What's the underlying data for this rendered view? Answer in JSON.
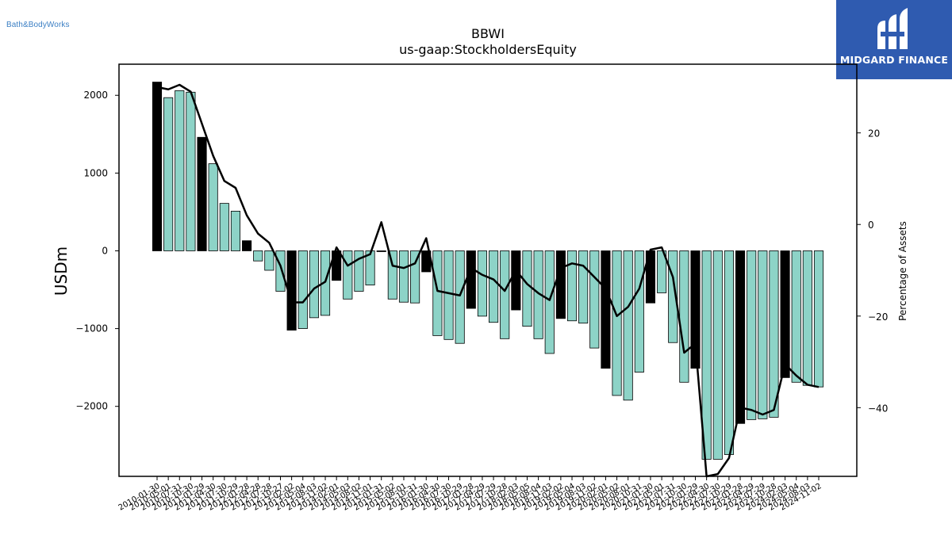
{
  "header": {
    "left_logo_text": "Bath&BodyWorks",
    "right_logo_text": "MIDGARD FINANCE"
  },
  "colors": {
    "bar_primary": "#000000",
    "bar_secondary": "#8dd3c7",
    "line": "#000000",
    "brand_blue": "#2f5bb0"
  },
  "chart_data": {
    "type": "bar",
    "title": "BBWI",
    "subtitle": "us-gaap:StockholdersEquity",
    "ylabel": "USDm",
    "y2label": "Percentage of Assets",
    "ylim": [
      -2900,
      2400
    ],
    "y2lim": [
      -55,
      35
    ],
    "yticks": [
      2000,
      1000,
      0,
      -1000,
      -2000
    ],
    "yticklabels": [
      "2000",
      "1000",
      "0",
      "−1000",
      "−2000"
    ],
    "y2ticks": [
      20,
      0,
      -20,
      -40
    ],
    "y2ticklabels": [
      "20",
      "0",
      "−20",
      "−40"
    ],
    "x": [
      "2010-01-30",
      "2010-05-01",
      "2010-07-31",
      "2010-10-30",
      "2011-01-29",
      "2011-04-30",
      "2011-07-30",
      "2011-10-29",
      "2012-01-28",
      "2012-04-28",
      "2012-07-28",
      "2012-10-27",
      "2013-02-02",
      "2013-05-04",
      "2013-08-03",
      "2013-11-02",
      "2014-02-01",
      "2014-05-03",
      "2014-08-02",
      "2014-11-01",
      "2015-01-31",
      "2015-05-02",
      "2015-08-01",
      "2015-10-31",
      "2016-01-30",
      "2016-04-30",
      "2016-07-30",
      "2016-10-29",
      "2017-01-28",
      "2017-04-29",
      "2017-07-29",
      "2017-10-28",
      "2018-02-03",
      "2018-05-05",
      "2018-08-04",
      "2018-11-03",
      "2019-02-02",
      "2019-05-04",
      "2019-08-03",
      "2019-11-02",
      "2020-02-01",
      "2020-05-02",
      "2020-08-01",
      "2020-10-31",
      "2021-01-30",
      "2021-05-01",
      "2021-07-31",
      "2021-10-30",
      "2022-01-29",
      "2022-04-30",
      "2022-07-30",
      "2022-10-29",
      "2023-01-28",
      "2023-04-29",
      "2023-07-29",
      "2023-10-28",
      "2024-02-03",
      "2024-05-04",
      "2024-08-03",
      "2024-11-02"
    ],
    "xlabels_shown": [
      "2010-01-30",
      "2010-05-01",
      "2010-07-31",
      "2010-10-30",
      "2011-01-29",
      "2011-04-30",
      "2011-07-30",
      "2011-10-29",
      "2012-01-28",
      "2012-04-28",
      "2012-07-28",
      "2012-10-27",
      "2013-02-02",
      "2013-05-04",
      "2013-08-03",
      "2013-11-02",
      "2014-02-01",
      "2014-05-03",
      "2014-08-02",
      "2014-11-01",
      "2015-01-31",
      "2015-05-02",
      "2015-08-01",
      "2015-10-31",
      "2016-01-30",
      "2016-04-30",
      "2016-07-30",
      "2016-10-29",
      "2017-01-28",
      "2017-04-29",
      "2017-07-29",
      "2017-10-28",
      "2018-02-03",
      "2018-05-05",
      "2018-08-04",
      "2018-11-03",
      "2019-02-02",
      "2019-05-04",
      "2019-08-03",
      "2019-11-02",
      "2020-02-01",
      "2020-05-02",
      "2020-08-01",
      "2020-10-31",
      "2021-01-30",
      "2021-05-01",
      "2021-07-31",
      "2021-10-30",
      "2022-01-29",
      "2022-04-30",
      "2022-07-30",
      "2022-10-29",
      "2023-01-28",
      "2023-04-29",
      "2023-07-29",
      "2023-10-28",
      "2024-02-03",
      "2024-05-04",
      "2024-08-03",
      "2024-11-02"
    ],
    "series": [
      {
        "type": "bar",
        "values": [
          2170,
          1970,
          2060,
          2040,
          1460,
          1120,
          610,
          510,
          130,
          -130,
          -250,
          -520,
          -1020,
          -1000,
          -860,
          -830,
          -380,
          -620,
          -520,
          -440,
          -10,
          -620,
          -660,
          -670,
          -270,
          -1090,
          -1140,
          -1190,
          -740,
          -840,
          -920,
          -1130,
          -760,
          -970,
          -1130,
          -1320,
          -870,
          -900,
          -930,
          -1250,
          -1510,
          -1860,
          -1920,
          -1560,
          -670,
          -540,
          -1180,
          -1690,
          -1510,
          -2680,
          -2680,
          -2620,
          -2220,
          -2170,
          -2160,
          -2140,
          -1630,
          -1690,
          -1730,
          -1750
        ],
        "is_fiscal_year_end": [
          true,
          false,
          false,
          false,
          true,
          false,
          false,
          false,
          true,
          false,
          false,
          false,
          true,
          false,
          false,
          false,
          true,
          false,
          false,
          false,
          true,
          false,
          false,
          false,
          true,
          false,
          false,
          false,
          true,
          false,
          false,
          false,
          true,
          false,
          false,
          false,
          true,
          false,
          false,
          false,
          true,
          false,
          false,
          false,
          true,
          false,
          false,
          false,
          true,
          false,
          false,
          false,
          true,
          false,
          false,
          false,
          true,
          false,
          false,
          false
        ]
      },
      {
        "type": "line",
        "axis": "right",
        "values": [
          30,
          29.5,
          30.5,
          29,
          22,
          15,
          9.5,
          8,
          2,
          -2,
          -4,
          -9,
          -17,
          -17,
          -14,
          -12.5,
          -5,
          -9,
          -7.5,
          -6.5,
          0.5,
          -9,
          -9.5,
          -8.5,
          -3,
          -14.5,
          -15,
          -15.5,
          -9.5,
          -11,
          -12,
          -14.5,
          -10,
          -13,
          -15,
          -16.5,
          -9.5,
          -8.5,
          -9,
          -11.5,
          -14,
          -20,
          -18,
          -14,
          -5.5,
          -5,
          -11.5,
          -28,
          -26,
          -55,
          -54.5,
          -51,
          -40,
          -40.5,
          -41.5,
          -40.5,
          -30.5,
          -33,
          -35,
          -35.5
        ]
      }
    ]
  }
}
